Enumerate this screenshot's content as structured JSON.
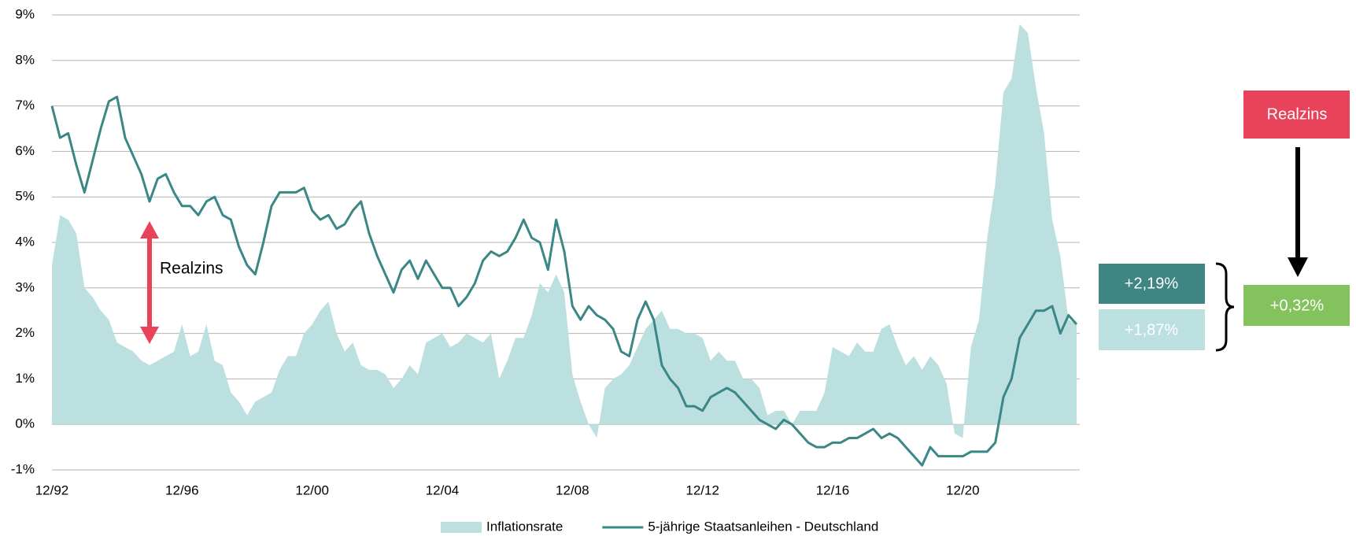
{
  "chart_data": {
    "type": "line",
    "categories": [
      "12/92",
      null,
      null,
      null,
      null,
      null,
      null,
      null,
      null,
      null,
      null,
      null,
      null,
      null,
      null,
      null,
      "12/96",
      null,
      null,
      null,
      null,
      null,
      null,
      null,
      null,
      null,
      null,
      null,
      null,
      null,
      null,
      null,
      "12/00",
      null,
      null,
      null,
      null,
      null,
      null,
      null,
      null,
      null,
      null,
      null,
      null,
      null,
      null,
      null,
      "12/04",
      null,
      null,
      null,
      null,
      null,
      null,
      null,
      null,
      null,
      null,
      null,
      null,
      null,
      null,
      null,
      "12/08",
      null,
      null,
      null,
      null,
      null,
      null,
      null,
      null,
      null,
      null,
      null,
      null,
      null,
      null,
      null,
      "12/12",
      null,
      null,
      null,
      null,
      null,
      null,
      null,
      null,
      null,
      null,
      null,
      null,
      null,
      null,
      null,
      "12/16",
      null,
      null,
      null,
      null,
      null,
      null,
      null,
      null,
      null,
      null,
      null,
      null,
      null,
      null,
      null,
      "12/20",
      null,
      null,
      null,
      null,
      null,
      null,
      null,
      null,
      null,
      null,
      null,
      null,
      null,
      null
    ],
    "series": [
      {
        "name": "Inflationsrate",
        "type": "area",
        "color": "#bcdfe0",
        "values": [
          3.5,
          4.6,
          4.5,
          4.2,
          3.0,
          2.8,
          2.5,
          2.3,
          1.8,
          1.7,
          1.6,
          1.4,
          1.3,
          1.4,
          1.5,
          1.6,
          2.2,
          1.5,
          1.6,
          2.2,
          1.4,
          1.3,
          0.7,
          0.5,
          0.2,
          0.5,
          0.6,
          0.7,
          1.2,
          1.5,
          1.5,
          2.0,
          2.2,
          2.5,
          2.7,
          2.0,
          1.6,
          1.8,
          1.3,
          1.2,
          1.2,
          1.1,
          0.8,
          1.0,
          1.3,
          1.1,
          1.8,
          1.9,
          2.0,
          1.7,
          1.8,
          2.0,
          1.9,
          1.8,
          2.0,
          1.0,
          1.4,
          1.9,
          1.9,
          2.4,
          3.1,
          2.9,
          3.3,
          2.9,
          1.1,
          0.5,
          0.0,
          -0.3,
          0.8,
          1.0,
          1.1,
          1.3,
          1.7,
          2.1,
          2.3,
          2.5,
          2.1,
          2.1,
          2.0,
          2.0,
          1.9,
          1.4,
          1.6,
          1.4,
          1.4,
          1.0,
          1.0,
          0.8,
          0.2,
          0.3,
          0.3,
          0.0,
          0.3,
          0.3,
          0.3,
          0.7,
          1.7,
          1.6,
          1.5,
          1.8,
          1.6,
          1.6,
          2.1,
          2.2,
          1.7,
          1.3,
          1.5,
          1.2,
          1.5,
          1.3,
          0.9,
          -0.2,
          -0.3,
          1.7,
          2.3,
          4.1,
          5.3,
          7.3,
          7.6,
          8.8,
          8.6,
          7.4,
          6.4,
          4.5,
          3.7,
          2.3,
          2.2
        ]
      },
      {
        "name": "5-jährige Staatsanleihen - Deutschland",
        "type": "line",
        "color": "#3a8785",
        "values": [
          7.0,
          6.3,
          6.4,
          5.7,
          5.1,
          5.8,
          6.5,
          7.1,
          7.2,
          6.3,
          5.9,
          5.5,
          4.9,
          5.4,
          5.5,
          5.1,
          4.8,
          4.8,
          4.6,
          4.9,
          5.0,
          4.6,
          4.5,
          3.9,
          3.5,
          3.3,
          4.0,
          4.8,
          5.1,
          5.1,
          5.1,
          5.2,
          4.7,
          4.5,
          4.6,
          4.3,
          4.4,
          4.7,
          4.9,
          4.2,
          3.7,
          3.3,
          2.9,
          3.4,
          3.6,
          3.2,
          3.6,
          3.3,
          3.0,
          3.0,
          2.6,
          2.8,
          3.1,
          3.6,
          3.8,
          3.7,
          3.8,
          4.1,
          4.5,
          4.1,
          4.0,
          3.4,
          4.5,
          3.8,
          2.6,
          2.3,
          2.6,
          2.4,
          2.3,
          2.1,
          1.6,
          1.5,
          2.3,
          2.7,
          2.3,
          1.3,
          1.0,
          0.8,
          0.4,
          0.4,
          0.3,
          0.6,
          0.7,
          0.8,
          0.7,
          0.5,
          0.3,
          0.1,
          0.0,
          -0.1,
          0.1,
          0.0,
          -0.2,
          -0.4,
          -0.5,
          -0.5,
          -0.4,
          -0.4,
          -0.3,
          -0.3,
          -0.2,
          -0.1,
          -0.3,
          -0.2,
          -0.3,
          -0.5,
          -0.7,
          -0.9,
          -0.5,
          -0.7,
          -0.7,
          -0.7,
          -0.7,
          -0.6,
          -0.6,
          -0.6,
          -0.4,
          0.6,
          1.0,
          1.9,
          2.2,
          2.5,
          2.5,
          2.6,
          2.0,
          2.4,
          2.2
        ]
      }
    ],
    "ylim": [
      -1,
      9
    ],
    "yticks": [
      {
        "value": -1,
        "label": "-1%"
      },
      {
        "value": 0,
        "label": "0%"
      },
      {
        "value": 1,
        "label": "1%"
      },
      {
        "value": 2,
        "label": "2%"
      },
      {
        "value": 3,
        "label": "3%"
      },
      {
        "value": 4,
        "label": "4%"
      },
      {
        "value": 5,
        "label": "5%"
      },
      {
        "value": 6,
        "label": "6%"
      },
      {
        "value": 7,
        "label": "7%"
      },
      {
        "value": 8,
        "label": "8%"
      },
      {
        "value": 9,
        "label": "9%"
      }
    ],
    "grid": true,
    "legend": "bottom",
    "annotations": [
      "Realzins",
      "+2,19%",
      "+1,87%",
      "Realzins",
      "+0,32%"
    ]
  }
}
